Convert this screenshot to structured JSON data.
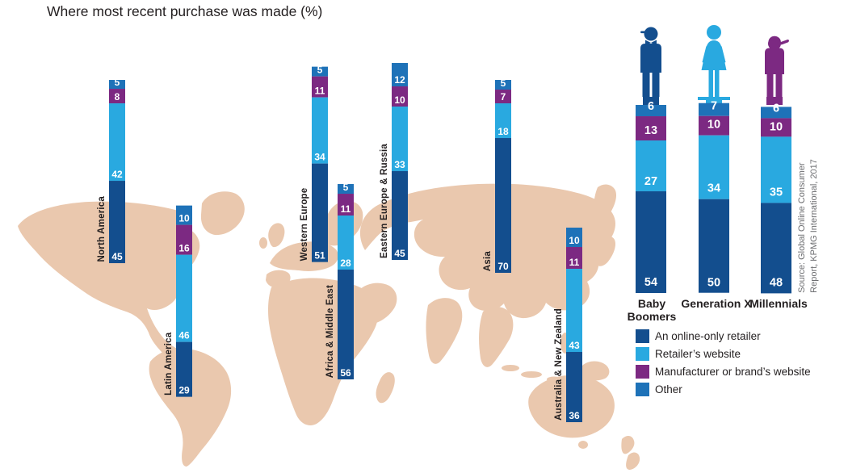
{
  "chart_data": {
    "type": "bar",
    "subtype": "stacked-100-percent-bars-over-world-map",
    "title": "Where most recent purchase was made (%)",
    "legend": [
      {
        "key": "online_only",
        "label": "An online-only retailer",
        "color": "#134E8E"
      },
      {
        "key": "retailer_website",
        "label": "Retailer’s website",
        "color": "#29A9E0"
      },
      {
        "key": "manufacturer_website",
        "label": "Manufacturer or brand’s website",
        "color": "#7C2982"
      },
      {
        "key": "other",
        "label": "Other",
        "color": "#1E72B8"
      }
    ],
    "regions": {
      "categories": [
        "North America",
        "Latin America",
        "Western Europe",
        "Africa & Middle East",
        "Eastern Europe & Russia",
        "Asia",
        "Australia & New Zealand"
      ],
      "series": [
        {
          "name": "An online-only retailer",
          "values": [
            45,
            29,
            51,
            56,
            45,
            70,
            36
          ]
        },
        {
          "name": "Retailer’s website",
          "values": [
            42,
            46,
            34,
            28,
            33,
            18,
            43
          ]
        },
        {
          "name": "Manufacturer or brand’s website",
          "values": [
            8,
            16,
            11,
            11,
            10,
            7,
            11
          ]
        },
        {
          "name": "Other",
          "values": [
            5,
            10,
            5,
            5,
            12,
            5,
            10
          ]
        }
      ]
    },
    "generations": {
      "categories": [
        "Baby Boomers",
        "Generation X",
        "Millennials"
      ],
      "icons": [
        "man-with-hat-icon",
        "woman-icon",
        "person-with-backwards-cap-icon"
      ],
      "series": [
        {
          "name": "An online-only retailer",
          "values": [
            54,
            50,
            48
          ]
        },
        {
          "name": "Retailer’s website",
          "values": [
            27,
            34,
            35
          ]
        },
        {
          "name": "Manufacturer or brand’s website",
          "values": [
            13,
            10,
            10
          ]
        },
        {
          "name": "Other",
          "values": [
            6,
            7,
            6
          ]
        }
      ]
    },
    "source_lines": [
      "Source: Global Online Consumer",
      "Report, KPMG International, 2017"
    ],
    "map_color": "#EAC8AE"
  }
}
